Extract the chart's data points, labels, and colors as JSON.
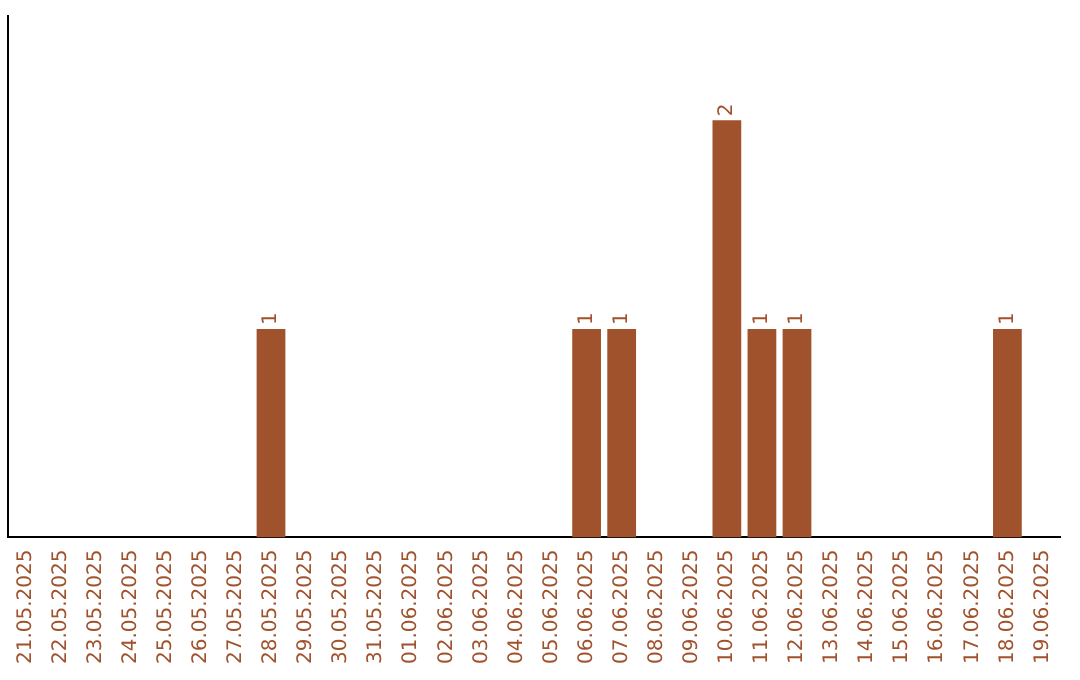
{
  "chart_data": {
    "type": "bar",
    "categories": [
      "21.05.2025",
      "22.05.2025",
      "23.05.2025",
      "24.05.2025",
      "25.05.2025",
      "26.05.2025",
      "27.05.2025",
      "28.05.2025",
      "29.05.2025",
      "30.05.2025",
      "31.05.2025",
      "01.06.2025",
      "02.06.2025",
      "03.06.2025",
      "04.06.2025",
      "05.06.2025",
      "06.06.2025",
      "07.06.2025",
      "08.06.2025",
      "09.06.2025",
      "10.06.2025",
      "11.06.2025",
      "12.06.2025",
      "13.06.2025",
      "14.06.2025",
      "15.06.2025",
      "16.06.2025",
      "17.06.2025",
      "18.06.2025",
      "19.06.2025"
    ],
    "values": [
      0,
      0,
      0,
      0,
      0,
      0,
      0,
      1,
      0,
      0,
      0,
      0,
      0,
      0,
      0,
      0,
      1,
      1,
      0,
      0,
      2,
      1,
      1,
      0,
      0,
      0,
      0,
      0,
      1,
      0
    ],
    "value_labels": [
      null,
      null,
      null,
      null,
      null,
      null,
      null,
      "1",
      null,
      null,
      null,
      null,
      null,
      null,
      null,
      null,
      "1",
      "1",
      null,
      null,
      "2",
      "1",
      "1",
      null,
      null,
      null,
      null,
      null,
      "1",
      null
    ],
    "color": "#a0522d",
    "tick_labels": "x",
    "grid": false,
    "legend": false
  }
}
